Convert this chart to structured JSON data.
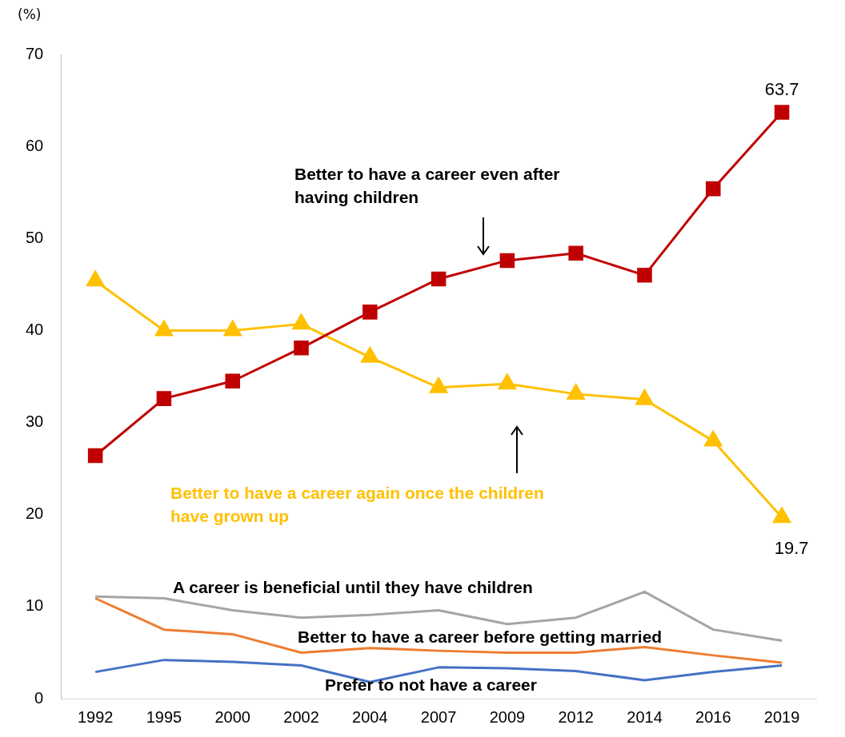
{
  "chart_data": {
    "type": "line",
    "ylabel": "(%)",
    "categories": [
      "1992",
      "1995",
      "2000",
      "2002",
      "2004",
      "2007",
      "2009",
      "2012",
      "2014",
      "2016",
      "2019"
    ],
    "ylim": [
      0,
      70
    ],
    "yticks": [
      0,
      10,
      20,
      30,
      40,
      50,
      60,
      70
    ],
    "grid": false,
    "legend": false,
    "series": [
      {
        "name": "Better to have a career even after having children",
        "color": "#c00000",
        "marker": "square",
        "values": [
          26.4,
          32.6,
          34.5,
          38.1,
          42.0,
          45.6,
          47.6,
          48.4,
          46.0,
          55.4,
          63.7
        ],
        "value_labels": [
          null,
          null,
          null,
          null,
          null,
          null,
          null,
          null,
          null,
          null,
          "63.7"
        ]
      },
      {
        "name": "Better to have a career again once the children have grown up",
        "color": "#ffc000",
        "marker": "triangle",
        "values": [
          45.4,
          40.0,
          40.0,
          40.7,
          37.1,
          33.8,
          34.2,
          33.1,
          32.5,
          28.0,
          19.7
        ],
        "value_labels": [
          null,
          null,
          null,
          null,
          null,
          null,
          null,
          null,
          null,
          null,
          "19.7"
        ]
      },
      {
        "name": "A career is beneficial until they have children",
        "color": "#a5a5a5",
        "marker": "none",
        "values": [
          11.1,
          10.9,
          9.6,
          8.8,
          9.1,
          9.6,
          8.1,
          8.8,
          11.6,
          7.5,
          6.3
        ]
      },
      {
        "name": "Better to have a career before getting married",
        "color": "#ed7d31",
        "marker": "none",
        "values": [
          10.9,
          7.5,
          7.0,
          5.0,
          5.5,
          5.2,
          5.0,
          5.0,
          5.6,
          4.7,
          3.9
        ]
      },
      {
        "name": "Prefer to not have a career",
        "color": "#4472c4",
        "marker": "none",
        "values": [
          2.9,
          4.2,
          4.0,
          3.6,
          1.8,
          3.4,
          3.3,
          3.0,
          2.0,
          2.9,
          3.6
        ]
      }
    ]
  }
}
